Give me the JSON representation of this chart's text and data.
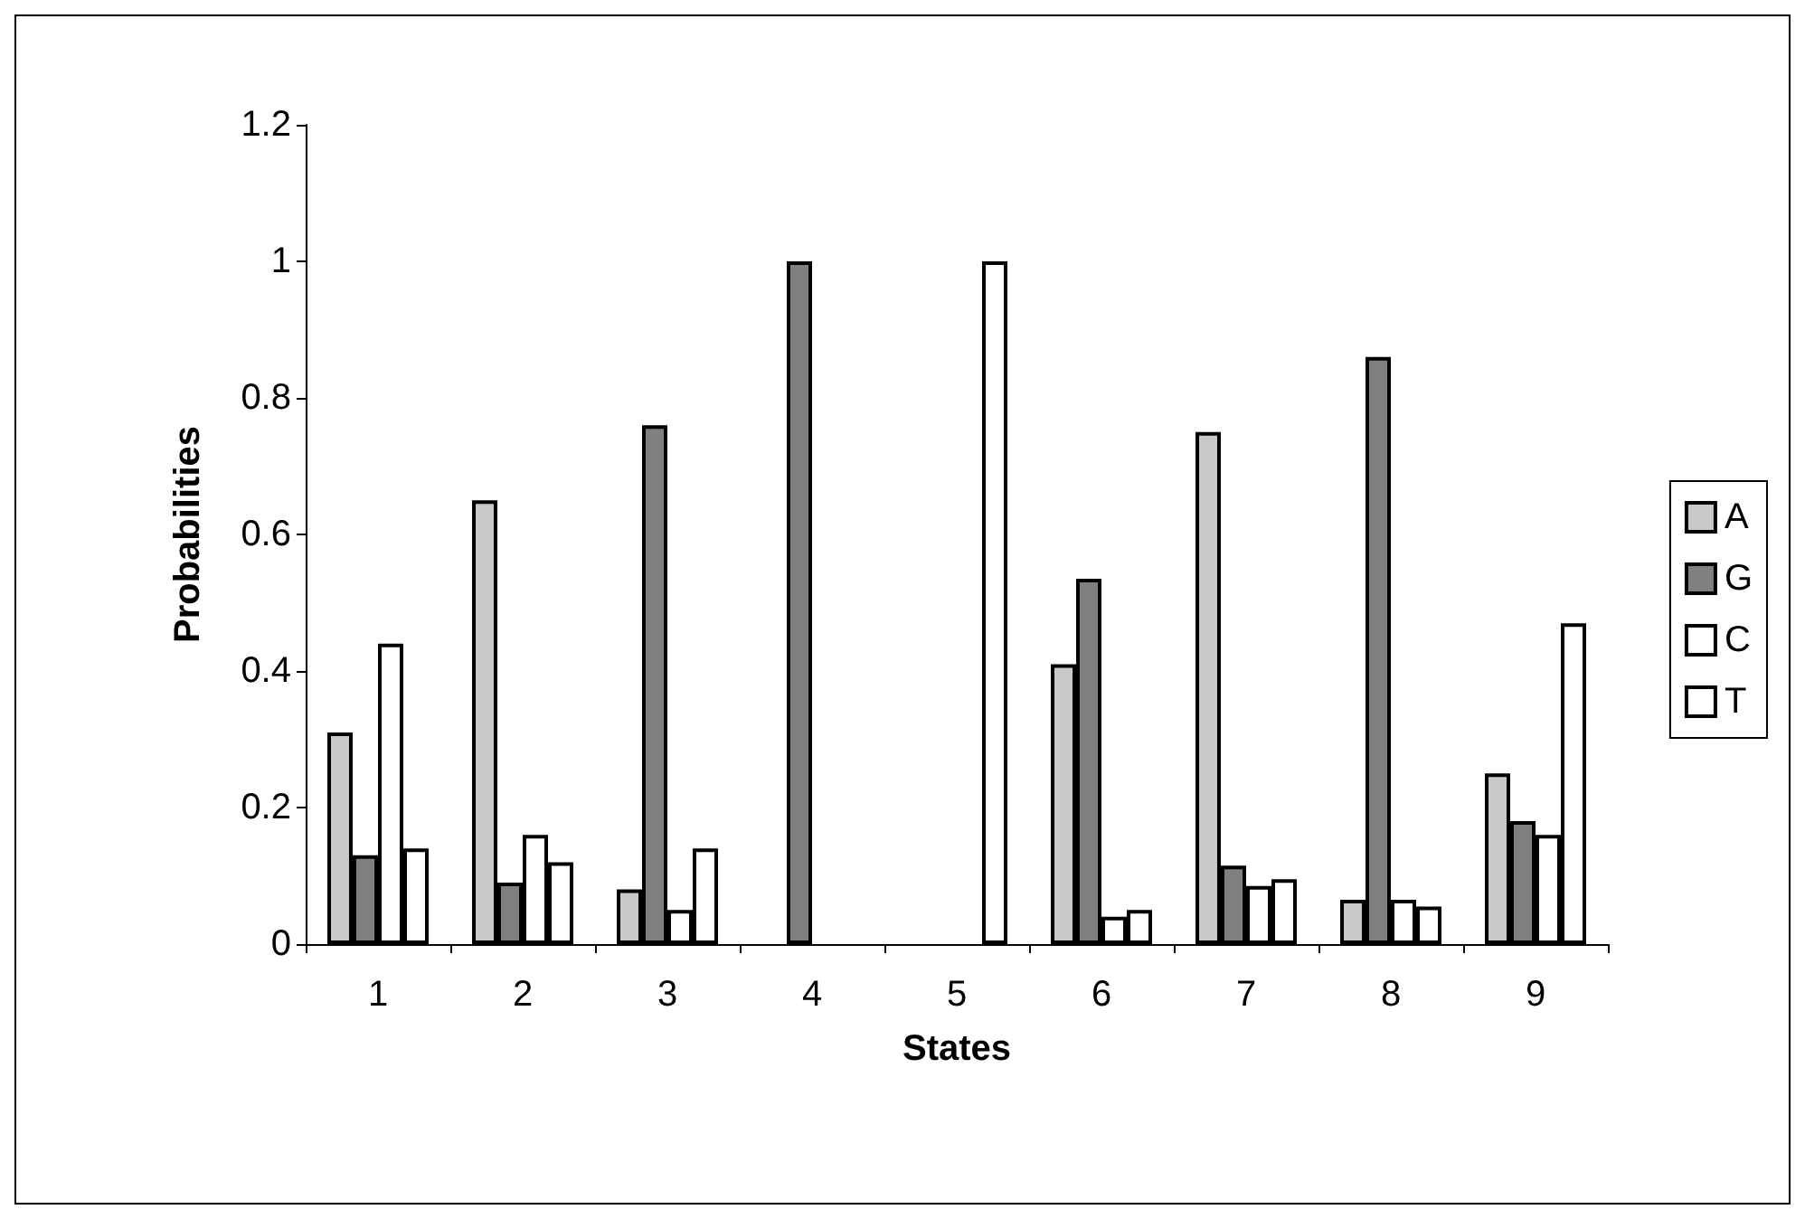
{
  "chart_data": {
    "type": "bar",
    "xlabel": "States",
    "ylabel": "Probabilities",
    "categories": [
      "1",
      "2",
      "3",
      "4",
      "5",
      "6",
      "7",
      "8",
      "9"
    ],
    "series": [
      {
        "name": "A",
        "color": "#c8c8c8",
        "values": [
          0.31,
          0.65,
          0.08,
          0,
          0,
          0.41,
          0.75,
          0.065,
          0.25
        ]
      },
      {
        "name": "G",
        "color": "#808080",
        "values": [
          0.13,
          0.09,
          0.76,
          1,
          0,
          0.535,
          0.115,
          0.86,
          0.18
        ]
      },
      {
        "name": "C",
        "color": "#ffffff",
        "values": [
          0.44,
          0.16,
          0.05,
          0,
          0,
          0.04,
          0.085,
          0.065,
          0.16
        ]
      },
      {
        "name": "T",
        "color": "#ffffff",
        "values": [
          0.14,
          0.12,
          0.14,
          0,
          1,
          0.05,
          0.095,
          0.055,
          0.47
        ]
      }
    ],
    "ylim": [
      0,
      1.2
    ],
    "yticks": [
      0,
      0.2,
      0.4,
      0.6,
      0.8,
      1,
      1.2
    ],
    "grid": false,
    "legend": "right"
  }
}
